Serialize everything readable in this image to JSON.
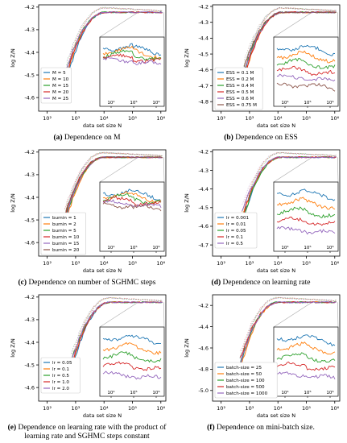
{
  "figure": {
    "colors": {
      "blue": "#1f77b4",
      "orange": "#ff7f0e",
      "green": "#2ca02c",
      "red": "#d62728",
      "purple": "#9467bd",
      "brown": "#8c564b",
      "pink": "#e377c2",
      "gray": "#7f7f7f",
      "olive": "#bcbd22",
      "cyan": "#17becf"
    }
  },
  "chart_data": [
    {
      "id": "a",
      "type": "line",
      "caption_label": "(a)",
      "caption_text": "Dependence on M",
      "xlabel": "data set size N",
      "ylabel": "log Z/N",
      "xscale": "log",
      "xlim": [
        50,
        1500000
      ],
      "ylim": [
        -4.66,
        -4.19
      ],
      "xticks": [
        "10²",
        "10³",
        "10⁴",
        "10⁵",
        "10⁶"
      ],
      "yticks": [
        "-4.2",
        "-4.3",
        "-4.4",
        "-4.5",
        "-4.6"
      ],
      "legend": "left-middle",
      "grid": false,
      "series": [
        {
          "name": "M = 5",
          "color": "#1f77b4"
        },
        {
          "name": "M = 10",
          "color": "#ff7f0e"
        },
        {
          "name": "M = 15",
          "color": "#2ca02c"
        },
        {
          "name": "M = 20",
          "color": "#d62728"
        },
        {
          "name": "M = 25",
          "color": "#9467bd"
        }
      ]
    },
    {
      "id": "b",
      "type": "line",
      "caption_label": "(b)",
      "caption_text": "Dependence on ESS",
      "xlabel": "data set size N",
      "ylabel": "log Z/N",
      "xscale": "log",
      "xlim": [
        50,
        1500000
      ],
      "ylim": [
        -4.86,
        -4.19
      ],
      "xticks": [
        "10²",
        "10³",
        "10⁴",
        "10⁵",
        "10⁶"
      ],
      "yticks": [
        "-4.2",
        "-4.3",
        "-4.4",
        "-4.5",
        "-4.6",
        "-4.7",
        "-4.8"
      ],
      "legend": "left-middle",
      "grid": false,
      "series": [
        {
          "name": "ESS = 0.1 M",
          "color": "#1f77b4"
        },
        {
          "name": "ESS = 0.2 M",
          "color": "#ff7f0e"
        },
        {
          "name": "ESS = 0.4 M",
          "color": "#2ca02c"
        },
        {
          "name": "ESS = 0.5 M",
          "color": "#d62728"
        },
        {
          "name": "ESS = 0.6 M",
          "color": "#9467bd"
        },
        {
          "name": "ESS = 0.75 M",
          "color": "#8c564b"
        }
      ]
    },
    {
      "id": "c",
      "type": "line",
      "caption_label": "(c)",
      "caption_text": "Dependence on number of SGHMC steps",
      "xlabel": "data set size N",
      "ylabel": "log Z/N",
      "xscale": "log",
      "xlim": [
        50,
        1500000
      ],
      "ylim": [
        -4.66,
        -4.19
      ],
      "xticks": [
        "10²",
        "10³",
        "10⁴",
        "10⁵",
        "10⁶"
      ],
      "yticks": [
        "-4.2",
        "-4.3",
        "-4.4",
        "-4.5",
        "-4.6"
      ],
      "legend": "left-middle",
      "grid": false,
      "series": [
        {
          "name": "burnin = 1",
          "color": "#1f77b4"
        },
        {
          "name": "burnin = 2",
          "color": "#ff7f0e"
        },
        {
          "name": "burnin = 5",
          "color": "#2ca02c"
        },
        {
          "name": "burnin = 10",
          "color": "#d62728"
        },
        {
          "name": "burnin = 15",
          "color": "#9467bd"
        },
        {
          "name": "burnin = 20",
          "color": "#8c564b"
        }
      ]
    },
    {
      "id": "d",
      "type": "line",
      "caption_label": "(d)",
      "caption_text": "Dependence on learning rate",
      "xlabel": "data set size N",
      "ylabel": "log Z/N",
      "xscale": "log",
      "xlim": [
        50,
        1500000
      ],
      "ylim": [
        -4.76,
        -4.19
      ],
      "xticks": [
        "10²",
        "10³",
        "10⁴",
        "10⁵",
        "10⁶"
      ],
      "yticks": [
        "-4.2",
        "-4.3",
        "-4.4",
        "-4.5",
        "-4.6",
        "-4.7"
      ],
      "legend": "left-middle",
      "grid": false,
      "series": [
        {
          "name": "lr = 0.001",
          "color": "#1f77b4"
        },
        {
          "name": "lr = 0.01",
          "color": "#ff7f0e"
        },
        {
          "name": "lr = 0.05",
          "color": "#2ca02c"
        },
        {
          "name": "lr = 0.1",
          "color": "#d62728"
        },
        {
          "name": "lr = 0.5",
          "color": "#9467bd"
        }
      ]
    },
    {
      "id": "e",
      "type": "line",
      "caption_label": "(e)",
      "caption_text": "Dependence on learning rate with the product of learning rate and SGHMC steps constant",
      "xlabel": "data set size N",
      "ylabel": "log Z/N",
      "xscale": "log",
      "xlim": [
        50,
        1500000
      ],
      "ylim": [
        -4.66,
        -4.19
      ],
      "xticks": [
        "10²",
        "10³",
        "10⁴",
        "10⁵",
        "10⁶"
      ],
      "yticks": [
        "-4.2",
        "-4.3",
        "-4.4",
        "-4.5",
        "-4.6"
      ],
      "legend": "left-middle",
      "grid": false,
      "series": [
        {
          "name": "lr = 0.05",
          "color": "#1f77b4"
        },
        {
          "name": "lr = 0.1",
          "color": "#ff7f0e"
        },
        {
          "name": "lr = 0.5",
          "color": "#2ca02c"
        },
        {
          "name": "lr = 1.0",
          "color": "#d62728"
        },
        {
          "name": "lr = 2.0",
          "color": "#9467bd"
        }
      ]
    },
    {
      "id": "f",
      "type": "line",
      "caption_label": "(f)",
      "caption_text": "Dependence on mini-batch size.",
      "xlabel": "data set size N",
      "ylabel": "log Z/N",
      "xscale": "log",
      "xlim": [
        50,
        1500000
      ],
      "ylim": [
        -5.1,
        -4.1
      ],
      "xticks": [
        "10²",
        "10³",
        "10⁴",
        "10⁵",
        "10⁶"
      ],
      "yticks": [
        "-4.2",
        "-4.4",
        "-4.6",
        "-4.8",
        "-5.0"
      ],
      "legend": "left-bottom",
      "grid": false,
      "series": [
        {
          "name": "batch-size = 25",
          "color": "#1f77b4"
        },
        {
          "name": "batch-size = 50",
          "color": "#ff7f0e"
        },
        {
          "name": "batch-size = 100",
          "color": "#2ca02c"
        },
        {
          "name": "batch-size = 500",
          "color": "#d62728"
        },
        {
          "name": "batch-size = 1000",
          "color": "#9467bd"
        }
      ]
    }
  ]
}
